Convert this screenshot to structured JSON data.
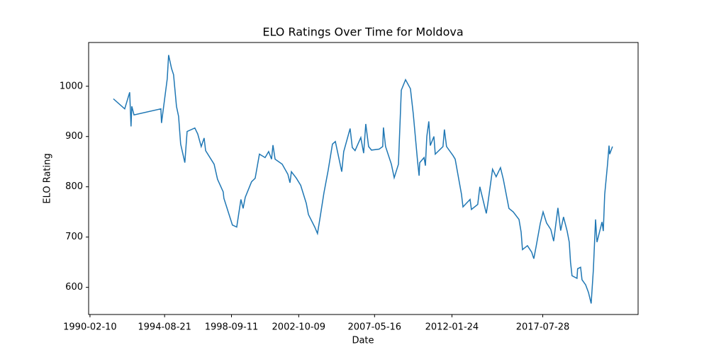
{
  "chart_data": {
    "type": "line",
    "title": "ELO Ratings Over Time for Moldova",
    "xlabel": "Date",
    "ylabel": "ELO Rating",
    "x": [
      "1991-07-13",
      "1992-03-20",
      "1992-07-08",
      "1992-08-07",
      "1992-08-25",
      "1992-10-12",
      "1994-05-30",
      "1994-06-14",
      "1994-10-19",
      "1994-11-17",
      "1995-01-22",
      "1995-03-08",
      "1995-05-11",
      "1995-06-27",
      "1995-08-11",
      "1995-11-13",
      "1996-01-01",
      "1996-06-21",
      "1996-08-24",
      "1996-11-09",
      "1997-01-12",
      "1997-02-14",
      "1997-08-22",
      "1997-11-06",
      "1998-03-11",
      "1998-03-27",
      "1998-10-01",
      "1999-01-05",
      "1999-04-08",
      "1999-05-26",
      "1999-07-13",
      "1999-11-29",
      "2000-02-17",
      "2000-05-22",
      "2000-09-24",
      "2000-12-12",
      "2001-02-14",
      "2001-03-18",
      "2001-05-04",
      "2001-10-08",
      "2002-02-10",
      "2002-03-29",
      "2002-04-30",
      "2002-08-18",
      "2002-11-21",
      "2003-03-26",
      "2003-05-12",
      "2003-09-28",
      "2003-11-29",
      "2004-01-15",
      "2004-04-19",
      "2004-07-23",
      "2004-10-26",
      "2004-12-28",
      "2005-05-19",
      "2005-07-02",
      "2005-11-21",
      "2006-01-08",
      "2006-03-11",
      "2006-07-16",
      "2006-09-17",
      "2006-11-03",
      "2007-01-05",
      "2007-03-08",
      "2007-08-26",
      "2007-11-13",
      "2007-11-28",
      "2008-01-15",
      "2008-05-22",
      "2008-07-24",
      "2008-10-27",
      "2008-12-28",
      "2009-04-02",
      "2009-07-19",
      "2009-09-20",
      "2009-12-24",
      "2010-01-26",
      "2010-02-10",
      "2010-05-16",
      "2010-06-15",
      "2010-07-16",
      "2010-08-30",
      "2010-10-01",
      "2010-12-20",
      "2011-01-19",
      "2011-07-09",
      "2011-08-10",
      "2011-09-27",
      "2012-02-17",
      "2012-04-05",
      "2012-08-22",
      "2012-09-24",
      "2013-02-28",
      "2013-03-30",
      "2013-08-18",
      "2013-10-04",
      "2014-02-24",
      "2014-03-27",
      "2014-07-12",
      "2014-09-30",
      "2015-01-03",
      "2015-03-08",
      "2015-07-10",
      "2015-10-13",
      "2016-02-17",
      "2016-04-04",
      "2016-05-05",
      "2016-08-22",
      "2016-11-25",
      "2017-01-11",
      "2017-02-28",
      "2017-06-03",
      "2017-08-04",
      "2017-10-20",
      "2018-01-23",
      "2018-03-26",
      "2018-06-29",
      "2018-08-29",
      "2018-10-31",
      "2019-01-19",
      "2019-03-07",
      "2019-04-05",
      "2019-05-08",
      "2019-08-25",
      "2019-09-09",
      "2019-11-13",
      "2019-12-14",
      "2020-03-03",
      "2020-05-05",
      "2020-07-05",
      "2020-08-22",
      "2020-10-09",
      "2020-11-10",
      "2021-03-01",
      "2021-03-30",
      "2021-05-01",
      "2021-07-02",
      "2021-08-04",
      "2021-08-18",
      "2021-10-20"
    ],
    "series": [
      {
        "name": "Moldova",
        "color": "#1f77b4",
        "values": [
          975,
          955,
          988,
          920,
          960,
          943,
          955,
          927,
          1015,
          1062,
          1035,
          1023,
          960,
          940,
          885,
          848,
          910,
          917,
          905,
          880,
          897,
          872,
          845,
          815,
          790,
          777,
          724,
          720,
          775,
          757,
          779,
          810,
          817,
          865,
          858,
          870,
          855,
          883,
          855,
          845,
          825,
          808,
          830,
          817,
          803,
          767,
          745,
          720,
          707,
          733,
          788,
          833,
          885,
          890,
          830,
          870,
          916,
          878,
          872,
          898,
          867,
          925,
          880,
          873,
          875,
          880,
          918,
          880,
          845,
          818,
          845,
          992,
          1013,
          995,
          945,
          850,
          822,
          848,
          858,
          842,
          900,
          930,
          882,
          900,
          865,
          880,
          914,
          880,
          862,
          855,
          785,
          760,
          775,
          755,
          765,
          800,
          747,
          765,
          835,
          820,
          838,
          815,
          757,
          750,
          735,
          710,
          675,
          683,
          670,
          657,
          680,
          727,
          750,
          728,
          715,
          692,
          758,
          713,
          740,
          712,
          690,
          650,
          623,
          618,
          637,
          640,
          615,
          605,
          590,
          568,
          635,
          735,
          690,
          730,
          712,
          785,
          845,
          882,
          865,
          880
        ]
      }
    ],
    "xlim": [
      "1990-01-11",
      "2023-05-10"
    ],
    "xticks": [
      "1990-02-10",
      "1994-08-21",
      "1998-09-11",
      "2002-10-09",
      "2007-05-16",
      "2012-01-24",
      "2017-07-28"
    ],
    "ylim": [
      546,
      1087
    ],
    "yticks": [
      600,
      700,
      800,
      900,
      1000
    ]
  }
}
